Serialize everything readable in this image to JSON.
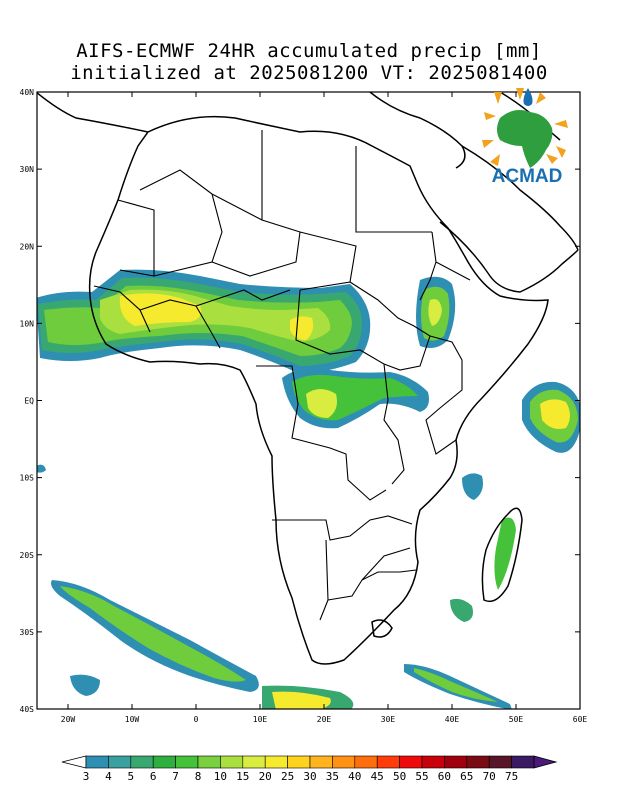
{
  "title_line1": "AIFS-ECMWF 24HR accumulated precip [mm]",
  "title_line2": "initialized at 2025081200 VT: 2025081400",
  "logo_text": "ACMAD",
  "lat_labels": [
    "40N",
    "30N",
    "20N",
    "10N",
    "EQ",
    "10S",
    "20S",
    "30S",
    "40S"
  ],
  "lon_labels": [
    "20W",
    "10W",
    "0",
    "10E",
    "20E",
    "30E",
    "40E",
    "50E",
    "60E"
  ],
  "colorbar": {
    "labels": [
      "3",
      "4",
      "5",
      "6",
      "7",
      "8",
      "10",
      "15",
      "20",
      "25",
      "30",
      "35",
      "40",
      "45",
      "50",
      "55",
      "60",
      "65",
      "70",
      "75"
    ],
    "colors": [
      "#2f8fb2",
      "#3a9f9f",
      "#38a870",
      "#2eb040",
      "#45c23a",
      "#7ad140",
      "#a9e040",
      "#d9ec40",
      "#f5ea2e",
      "#ffd21e",
      "#ffb41e",
      "#ff9214",
      "#ff6e0c",
      "#ff3c0a",
      "#ee0a0a",
      "#c8000a",
      "#a0000e",
      "#7a0a14",
      "#581428",
      "#3a1a62"
    ]
  }
}
